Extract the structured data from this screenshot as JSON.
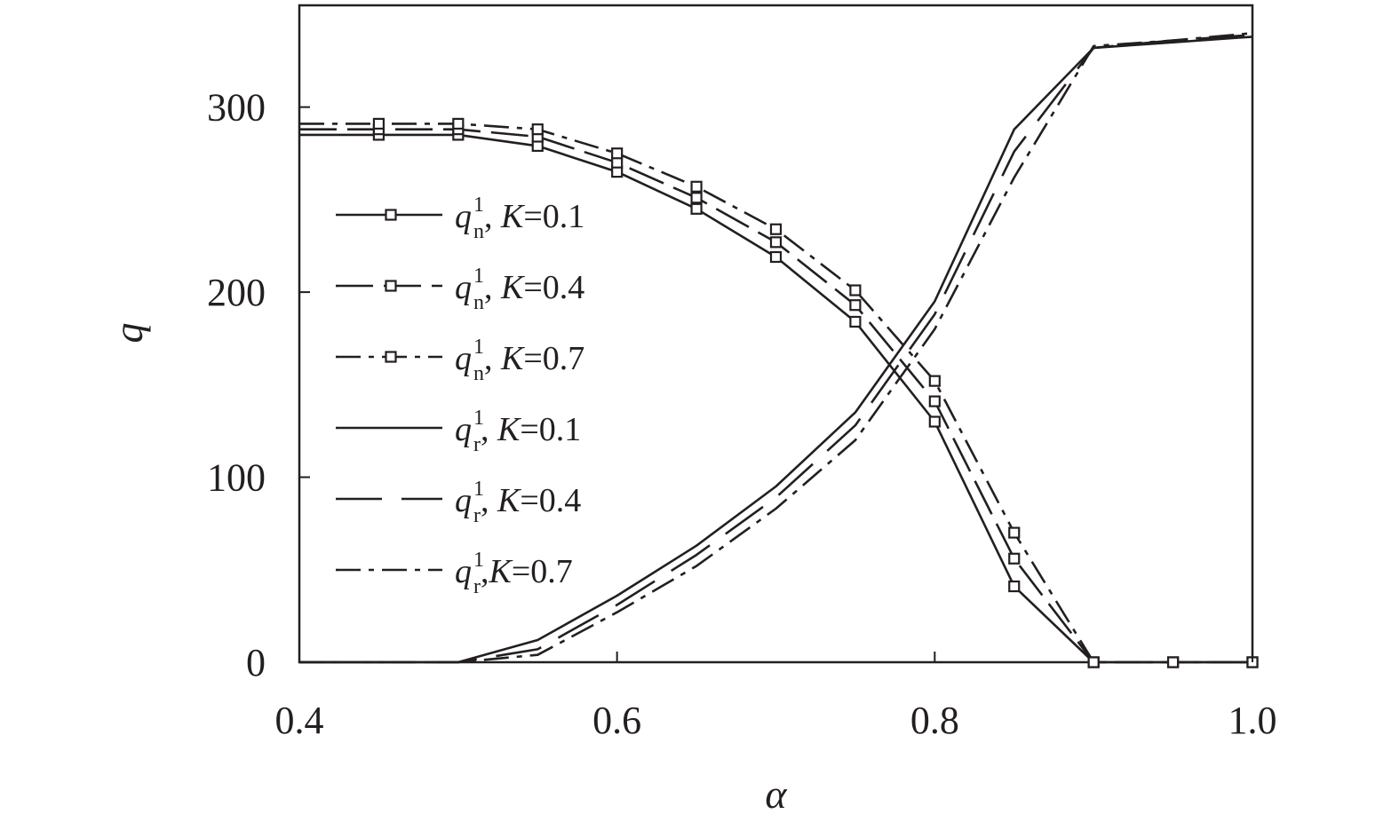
{
  "chart_data": {
    "type": "line",
    "xlabel": "α",
    "ylabel": "q",
    "xlim": [
      0.4,
      1.0
    ],
    "ylim": [
      0,
      355
    ],
    "x_ticks": [
      "0.4",
      "0.6",
      "0.8",
      "1.0"
    ],
    "y_ticks": [
      "0",
      "100",
      "200",
      "300"
    ],
    "grid": false,
    "legend_position": "left",
    "series": [
      {
        "name": "q_n^1, K=0.1",
        "legend": {
          "var": "q",
          "sub": "n",
          "sup": "1",
          "sep": ", ",
          "param": "K",
          "value": "=0.1"
        },
        "style": "solid",
        "marker": "square",
        "color": "#231f20",
        "x": [
          0.4,
          0.45,
          0.5,
          0.55,
          0.6,
          0.65,
          0.7,
          0.75,
          0.8,
          0.85,
          0.9,
          0.95,
          1.0
        ],
        "y": [
          285,
          285,
          285,
          279,
          265,
          245,
          219,
          184,
          130,
          41,
          0,
          0,
          0
        ]
      },
      {
        "name": "q_n^1, K=0.4",
        "legend": {
          "var": "q",
          "sub": "n",
          "sup": "1",
          "sep": ", ",
          "param": "K",
          "value": "=0.4"
        },
        "style": "dash",
        "marker": "square",
        "color": "#231f20",
        "x": [
          0.4,
          0.45,
          0.5,
          0.55,
          0.6,
          0.65,
          0.7,
          0.75,
          0.8,
          0.85,
          0.9,
          0.95,
          1.0
        ],
        "y": [
          288,
          288,
          288,
          284,
          270,
          251,
          227,
          193,
          141,
          56,
          0,
          0,
          0
        ]
      },
      {
        "name": "q_n^1, K=0.7",
        "legend": {
          "var": "q",
          "sub": "n",
          "sup": "1",
          "sep": ", ",
          "param": "K",
          "value": "=0.7"
        },
        "style": "dashdot",
        "marker": "square",
        "color": "#231f20",
        "x": [
          0.4,
          0.45,
          0.5,
          0.55,
          0.6,
          0.65,
          0.7,
          0.75,
          0.8,
          0.85,
          0.9,
          0.95,
          1.0
        ],
        "y": [
          291,
          291,
          291,
          288,
          275,
          257,
          234,
          201,
          152,
          70,
          0,
          0,
          0
        ]
      },
      {
        "name": "q_r^1, K=0.1",
        "legend": {
          "var": "q",
          "sub": "r",
          "sup": "1",
          "sep": ", ",
          "param": "K",
          "value": "=0.1"
        },
        "style": "solid",
        "marker": "none",
        "color": "#231f20",
        "x": [
          0.4,
          0.45,
          0.5,
          0.55,
          0.6,
          0.65,
          0.7,
          0.75,
          0.8,
          0.85,
          0.9,
          0.95,
          1.0
        ],
        "y": [
          0,
          0,
          0,
          12,
          36,
          63,
          95,
          135,
          195,
          288,
          332,
          335,
          338
        ]
      },
      {
        "name": "q_r^1, K=0.4",
        "legend": {
          "var": "q",
          "sub": "r",
          "sup": "1",
          "sep": ", ",
          "param": "K",
          "value": "=0.4"
        },
        "style": "longdash",
        "marker": "none",
        "color": "#231f20",
        "x": [
          0.4,
          0.45,
          0.5,
          0.55,
          0.6,
          0.65,
          0.7,
          0.75,
          0.8,
          0.85,
          0.9,
          0.95,
          1.0
        ],
        "y": [
          0,
          0,
          0,
          7,
          31,
          58,
          89,
          128,
          188,
          276,
          332,
          336,
          339
        ]
      },
      {
        "name": "q_r^1, K=0.7",
        "legend": {
          "var": "q",
          "sub": "r",
          "sup": "1",
          "sep": ",",
          "param": "K",
          "value": "=0.7"
        },
        "style": "dashdot",
        "marker": "none",
        "color": "#231f20",
        "x": [
          0.4,
          0.45,
          0.5,
          0.55,
          0.6,
          0.65,
          0.7,
          0.75,
          0.8,
          0.85,
          0.9,
          0.95,
          1.0
        ],
        "y": [
          0,
          0,
          0,
          4,
          27,
          52,
          83,
          120,
          180,
          262,
          333,
          336,
          340
        ]
      }
    ]
  }
}
